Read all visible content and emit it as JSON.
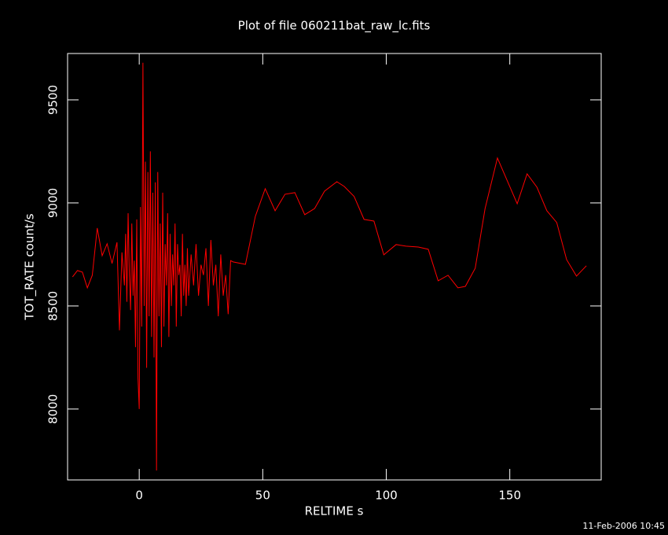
{
  "chart_data": {
    "type": "line",
    "title": "Plot of file 060211bat_raw_lc.fits",
    "x_label": "RELTIME  s",
    "y_label": "TOT_RATE  count/s",
    "footer": "11-Feb-2006 10:45",
    "xlim": [
      -29,
      187
    ],
    "ylim": [
      7656,
      9725
    ],
    "xticks": [
      0,
      50,
      100,
      150
    ],
    "yticks": [
      8000,
      8500,
      9000,
      9500
    ],
    "x": [
      -27,
      -25,
      -23,
      -21,
      -19,
      -17,
      -15,
      -13,
      -11,
      -9,
      -8,
      -7,
      -6,
      -5.5,
      -5,
      -4.5,
      -4,
      -3.5,
      -3,
      -2.5,
      -2,
      -1.5,
      -1,
      -0.5,
      0,
      0.5,
      1,
      1.5,
      2,
      2.5,
      3,
      3.5,
      4,
      4.5,
      5,
      5.5,
      6,
      6.5,
      7,
      7.5,
      8,
      8.5,
      9,
      9.5,
      10,
      10.5,
      11,
      11.5,
      12,
      12.5,
      13,
      13.5,
      14,
      14.5,
      15,
      15.5,
      16,
      16.5,
      17,
      17.5,
      18,
      18.5,
      19,
      19.5,
      20,
      21,
      22,
      23,
      24,
      25,
      26,
      27,
      28,
      29,
      30,
      31,
      32,
      33,
      34,
      35,
      36,
      37,
      38,
      43,
      47,
      51,
      55,
      59,
      63,
      67,
      71,
      75,
      80,
      83,
      87,
      91,
      95,
      99,
      104,
      108,
      113,
      117,
      121,
      125,
      129,
      132,
      136,
      140,
      145,
      149,
      153,
      157,
      161,
      165,
      169,
      173,
      177,
      181
    ],
    "series": [
      {
        "name": "TOT_RATE",
        "color": "#ff0000",
        "values": [
          8641,
          8672,
          8664,
          8588,
          8649,
          8878,
          8744,
          8802,
          8706,
          8809,
          8382,
          8760,
          8600,
          8850,
          8520,
          8950,
          8650,
          8480,
          8900,
          8550,
          8720,
          8300,
          8920,
          8150,
          8000,
          8980,
          8400,
          9680,
          8500,
          9200,
          8200,
          9150,
          8450,
          9250,
          8350,
          9050,
          8250,
          9100,
          7702,
          9150,
          8450,
          8900,
          8300,
          9050,
          8400,
          8800,
          8600,
          8950,
          8350,
          8850,
          8500,
          8750,
          8600,
          8900,
          8400,
          8800,
          8650,
          8700,
          8450,
          8850,
          8550,
          8700,
          8500,
          8780,
          8550,
          8750,
          8600,
          8800,
          8550,
          8700,
          8650,
          8780,
          8500,
          8820,
          8600,
          8700,
          8450,
          8750,
          8550,
          8650,
          8460,
          8720,
          8714,
          8702,
          8935,
          9069,
          8962,
          9042,
          9050,
          8943,
          8973,
          9057,
          9103,
          9080,
          9031,
          8920,
          8912,
          8748,
          8798,
          8790,
          8786,
          8775,
          8622,
          8649,
          8588,
          8595,
          8683,
          8973,
          9218,
          9107,
          8996,
          9141,
          9076,
          8962,
          8905,
          8725,
          8645,
          8695
        ]
      }
    ]
  }
}
